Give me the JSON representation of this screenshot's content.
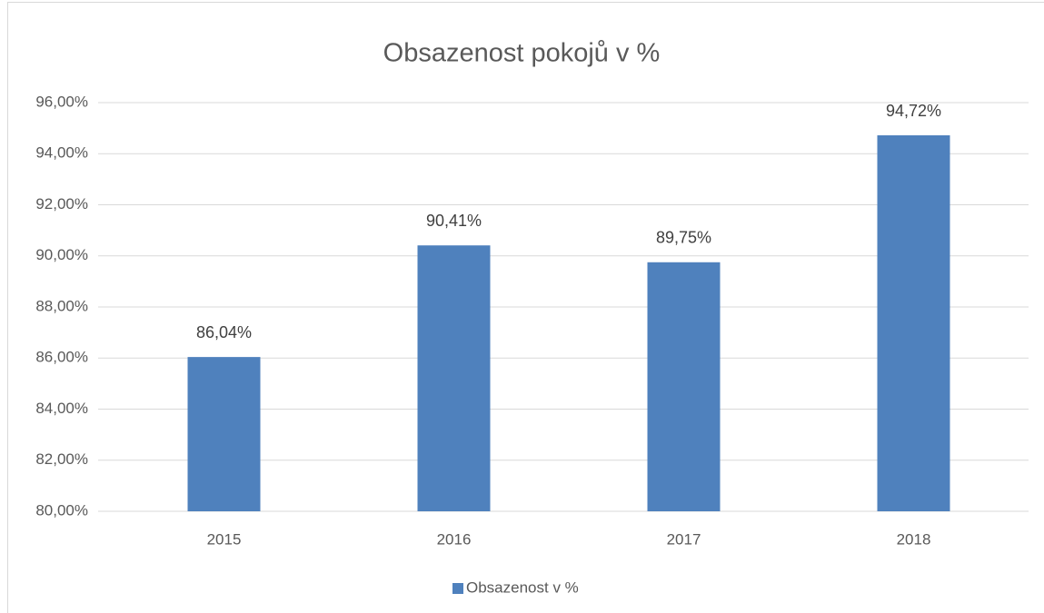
{
  "chart_data": {
    "type": "bar",
    "title": "Obsazenost pokojů v %",
    "categories": [
      "2015",
      "2016",
      "2017",
      "2018"
    ],
    "series": [
      {
        "name": "Obsazenost v %",
        "color": "#4f81bd",
        "values": [
          86.04,
          90.41,
          89.75,
          94.72
        ],
        "value_labels": [
          "86,04%",
          "90,41%",
          "89,75%",
          "94,72%"
        ]
      }
    ],
    "ylim": [
      80,
      96
    ],
    "yticks": [
      {
        "value": 80,
        "label": "80,00%"
      },
      {
        "value": 82,
        "label": "82,00%"
      },
      {
        "value": 84,
        "label": "84,00%"
      },
      {
        "value": 86,
        "label": "86,00%"
      },
      {
        "value": 88,
        "label": "88,00%"
      },
      {
        "value": 90,
        "label": "90,00%"
      },
      {
        "value": 92,
        "label": "92,00%"
      },
      {
        "value": 94,
        "label": "94,00%"
      },
      {
        "value": 96,
        "label": "96,00%"
      }
    ],
    "grid": true,
    "legend": "bottom"
  }
}
